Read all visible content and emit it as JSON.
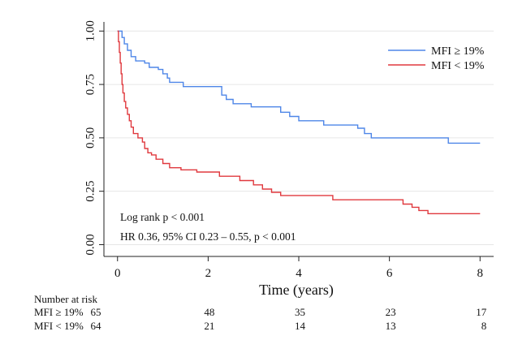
{
  "chart_data": {
    "type": "line",
    "subtype": "kaplan-meier",
    "xlabel": "Time (years)",
    "ylabel": "",
    "xlim": [
      -0.3,
      8.3
    ],
    "ylim": [
      -0.04,
      1.02
    ],
    "x_ticks": [
      0,
      2,
      4,
      6,
      8
    ],
    "x_tick_labels": [
      "0",
      "2",
      "4",
      "6",
      "8"
    ],
    "y_ticks": [
      0,
      0.25,
      0.5,
      0.75,
      1.0
    ],
    "y_tick_labels": [
      "0.00",
      "0.25",
      "0.50",
      "0.75",
      "1.00"
    ],
    "grid": "horizontal",
    "legend_position": "top-right",
    "series": [
      {
        "name": "MFI ≥ 19%",
        "color": "#4e86e8",
        "steps": [
          [
            0,
            1.0
          ],
          [
            0.1,
            0.97
          ],
          [
            0.15,
            0.94
          ],
          [
            0.22,
            0.91
          ],
          [
            0.3,
            0.88
          ],
          [
            0.4,
            0.86
          ],
          [
            0.6,
            0.85
          ],
          [
            0.7,
            0.83
          ],
          [
            0.9,
            0.82
          ],
          [
            1.0,
            0.8
          ],
          [
            1.1,
            0.78
          ],
          [
            1.15,
            0.76
          ],
          [
            1.45,
            0.74
          ],
          [
            2.3,
            0.7
          ],
          [
            2.4,
            0.68
          ],
          [
            2.55,
            0.66
          ],
          [
            2.95,
            0.645
          ],
          [
            3.6,
            0.62
          ],
          [
            3.8,
            0.6
          ],
          [
            4.0,
            0.58
          ],
          [
            4.55,
            0.56
          ],
          [
            5.3,
            0.545
          ],
          [
            5.45,
            0.52
          ],
          [
            5.6,
            0.5
          ],
          [
            7.3,
            0.475
          ],
          [
            8.0,
            0.475
          ]
        ]
      },
      {
        "name": "MFI < 19%",
        "color": "#e0393e",
        "steps": [
          [
            0,
            1.0
          ],
          [
            0.02,
            0.95
          ],
          [
            0.04,
            0.9
          ],
          [
            0.06,
            0.85
          ],
          [
            0.08,
            0.8
          ],
          [
            0.1,
            0.75
          ],
          [
            0.12,
            0.71
          ],
          [
            0.15,
            0.67
          ],
          [
            0.18,
            0.64
          ],
          [
            0.22,
            0.61
          ],
          [
            0.26,
            0.58
          ],
          [
            0.3,
            0.55
          ],
          [
            0.35,
            0.52
          ],
          [
            0.45,
            0.5
          ],
          [
            0.55,
            0.48
          ],
          [
            0.6,
            0.45
          ],
          [
            0.67,
            0.43
          ],
          [
            0.75,
            0.42
          ],
          [
            0.85,
            0.4
          ],
          [
            1.0,
            0.38
          ],
          [
            1.15,
            0.36
          ],
          [
            1.4,
            0.35
          ],
          [
            1.75,
            0.34
          ],
          [
            2.25,
            0.32
          ],
          [
            2.7,
            0.3
          ],
          [
            3.0,
            0.28
          ],
          [
            3.2,
            0.26
          ],
          [
            3.4,
            0.245
          ],
          [
            3.6,
            0.23
          ],
          [
            4.75,
            0.21
          ],
          [
            6.3,
            0.19
          ],
          [
            6.5,
            0.175
          ],
          [
            6.65,
            0.16
          ],
          [
            6.85,
            0.145
          ],
          [
            8.0,
            0.145
          ]
        ]
      }
    ],
    "annotations": [
      "Log rank p < 0.001",
      "HR 0.36, 95% CI 0.23 – 0.55, p < 0.001"
    ],
    "risk_table": {
      "title": "Number at risk",
      "times": [
        0,
        2,
        4,
        6,
        8
      ],
      "rows": [
        {
          "label": "MFI ≥ 19%",
          "values": [
            "65",
            "48",
            "35",
            "23",
            "17"
          ]
        },
        {
          "label": "MFI < 19%",
          "values": [
            "64",
            "21",
            "14",
            "13",
            "8"
          ]
        }
      ]
    }
  }
}
